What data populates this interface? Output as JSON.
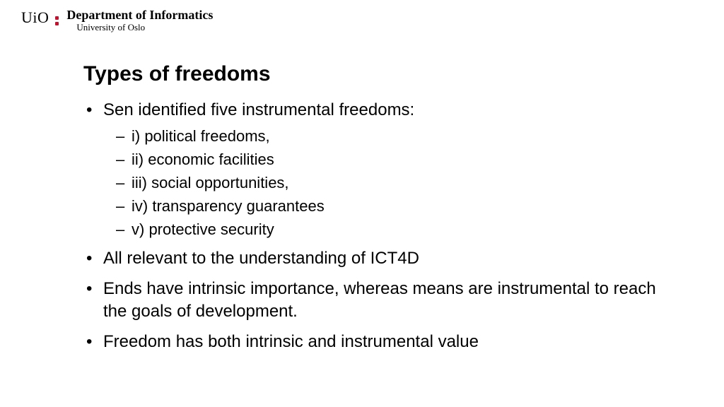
{
  "header": {
    "logo_text": "UiO",
    "department": "Department of Informatics",
    "university": "University of Oslo",
    "accent_color": "#c8102e"
  },
  "slide": {
    "title": "Types of freedoms",
    "bullets": [
      {
        "text": "Sen identified five instrumental freedoms:",
        "sub": [
          "i) political freedoms,",
          "ii) economic facilities",
          "iii) social opportunities,",
          "iv) transparency guarantees",
          "v) protective security"
        ]
      },
      {
        "text": "All relevant to the understanding of ICT4D"
      },
      {
        "text": "Ends have intrinsic importance, whereas means are instrumental to reach the goals of development."
      },
      {
        "text": "Freedom has both intrinsic and instrumental value"
      }
    ]
  },
  "style": {
    "background": "#ffffff",
    "text_color": "#000000",
    "title_fontsize": 30,
    "body_fontsize": 24,
    "sub_fontsize": 22
  }
}
